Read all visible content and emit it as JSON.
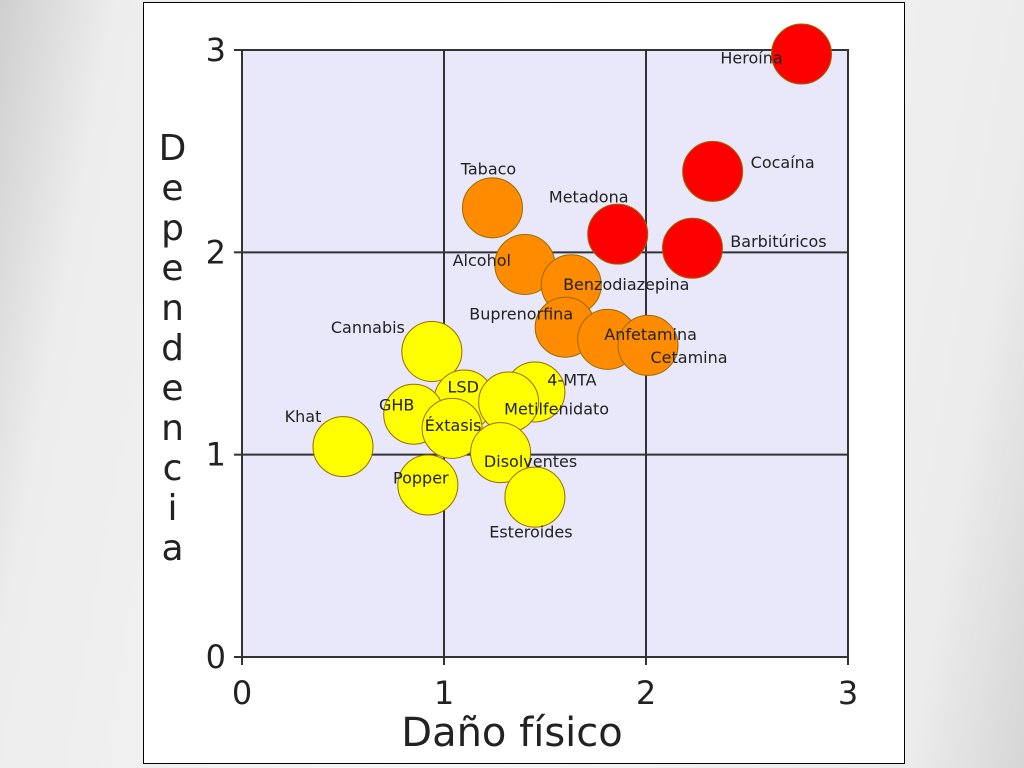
{
  "chart_data": {
    "type": "scatter",
    "xlabel": "Daño físico",
    "ylabel": "Dependencia",
    "xlim": [
      0,
      3
    ],
    "ylim": [
      0,
      3
    ],
    "xticks": [
      0,
      1,
      2,
      3
    ],
    "yticks": [
      0,
      1,
      2,
      3
    ],
    "grid": true,
    "series": [
      {
        "color": "#ff0000",
        "labels": [
          "Heroína",
          "Cocaína",
          "Metadona",
          "Barbitúricos"
        ],
        "x": [
          2.77,
          2.33,
          1.86,
          2.23
        ],
        "y": [
          2.98,
          2.4,
          2.09,
          2.02
        ]
      },
      {
        "color": "#ff8c00",
        "labels": [
          "Tabaco",
          "Alcohol",
          "Benzodiazepina",
          "Buprenorfina",
          "Anfetamina",
          "Cetamina"
        ],
        "x": [
          1.24,
          1.4,
          1.63,
          1.6,
          1.81,
          2.01
        ],
        "y": [
          2.22,
          1.94,
          1.84,
          1.63,
          1.57,
          1.54
        ]
      },
      {
        "color": "#ffff00",
        "labels": [
          "Cannabis",
          "LSD",
          "4-MTA",
          "Metilfenidato",
          "GHB",
          "Éxtasis",
          "Khat",
          "Disolventes",
          "Popper",
          "Esteroides"
        ],
        "x": [
          0.94,
          1.1,
          1.45,
          1.32,
          0.85,
          1.04,
          0.5,
          1.28,
          0.92,
          1.45
        ],
        "y": [
          1.51,
          1.27,
          1.31,
          1.26,
          1.2,
          1.13,
          1.04,
          1.01,
          0.85,
          0.79
        ]
      }
    ]
  }
}
